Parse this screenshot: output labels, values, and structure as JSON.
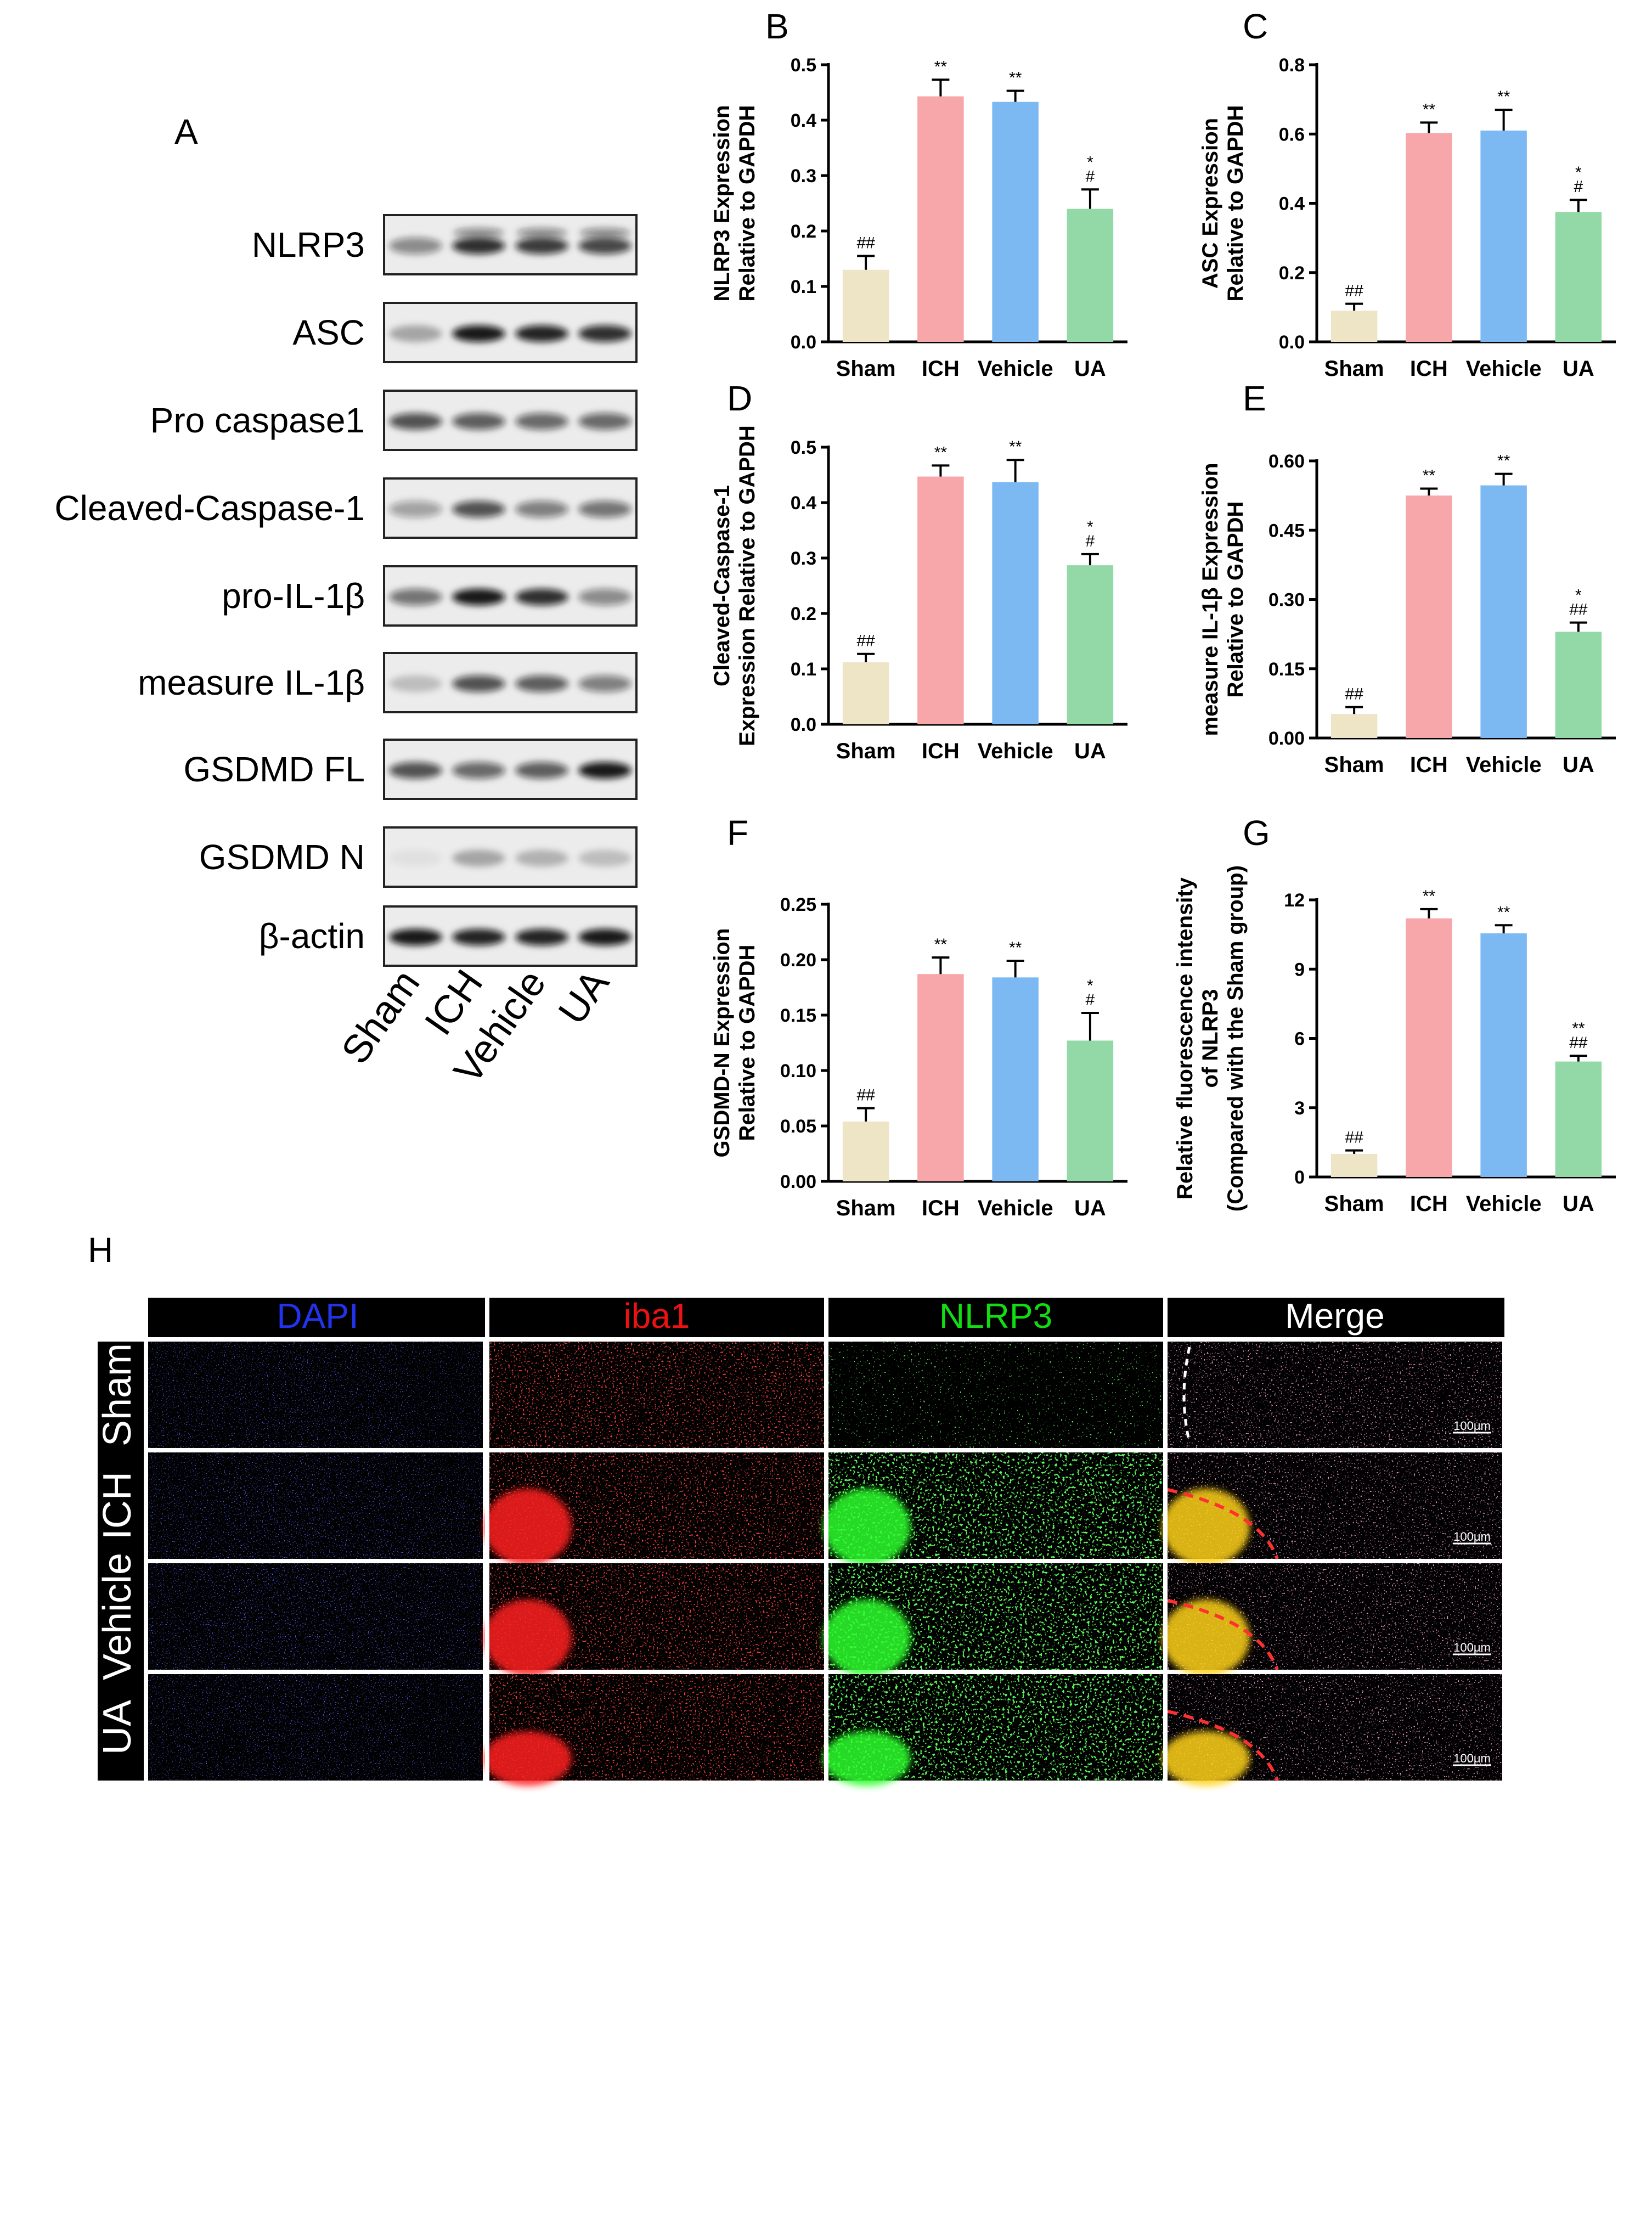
{
  "panel_labels": [
    "A",
    "B",
    "C",
    "D",
    "E",
    "F",
    "G",
    "H"
  ],
  "western_blot": {
    "bands": [
      "NLRP3",
      "ASC",
      "Pro caspase1",
      "Cleaved-Caspase-1",
      "pro-IL-1β",
      "measure IL-1β",
      "GSDMD FL",
      "GSDMD N",
      "β-actin"
    ],
    "lanes": [
      "Sham",
      "ICH",
      "Vehicle",
      "UA"
    ]
  },
  "chart_data": [
    {
      "panel": "B",
      "type": "bar",
      "categories": [
        "Sham",
        "ICH",
        "Vehicle",
        "UA"
      ],
      "values": [
        0.13,
        0.443,
        0.433,
        0.24
      ],
      "errors": [
        0.025,
        0.03,
        0.02,
        0.035
      ],
      "significance": [
        [
          "##"
        ],
        [
          "**"
        ],
        [
          "**"
        ],
        [
          "*",
          "#"
        ]
      ],
      "ylabel": [
        "NLRP3 Expression",
        "Relative to GAPDH"
      ],
      "ylim": [
        0,
        0.5
      ],
      "yticks": [
        0.0,
        0.1,
        0.2,
        0.3,
        0.4,
        0.5
      ],
      "tick_labels": [
        "0.0",
        "0.1",
        "0.2",
        "0.3",
        "0.4",
        "0.5"
      ],
      "colors": [
        "#EEE4C6",
        "#F7A6A9",
        "#7CB9F2",
        "#93D9A8"
      ]
    },
    {
      "panel": "C",
      "type": "bar",
      "categories": [
        "Sham",
        "ICH",
        "Vehicle",
        "UA"
      ],
      "values": [
        0.09,
        0.603,
        0.61,
        0.375
      ],
      "errors": [
        0.02,
        0.03,
        0.06,
        0.035
      ],
      "significance": [
        [
          "##"
        ],
        [
          "**"
        ],
        [
          "**"
        ],
        [
          "*",
          "#"
        ]
      ],
      "ylabel": [
        "ASC Expression",
        "Relative to GAPDH"
      ],
      "ylim": [
        0,
        0.8
      ],
      "yticks": [
        0.0,
        0.2,
        0.4,
        0.6,
        0.8
      ],
      "tick_labels": [
        "0.0",
        "0.2",
        "0.4",
        "0.6",
        "0.8"
      ],
      "colors": [
        "#EEE4C6",
        "#F7A6A9",
        "#7CB9F2",
        "#93D9A8"
      ]
    },
    {
      "panel": "D",
      "type": "bar",
      "categories": [
        "Sham",
        "ICH",
        "Vehicle",
        "UA"
      ],
      "values": [
        0.112,
        0.447,
        0.437,
        0.287
      ],
      "errors": [
        0.015,
        0.02,
        0.04,
        0.02
      ],
      "significance": [
        [
          "##"
        ],
        [
          "**"
        ],
        [
          "**"
        ],
        [
          "*",
          "#"
        ]
      ],
      "ylabel": [
        "Cleaved-Caspase-1",
        "Expression Relative to GAPDH"
      ],
      "ylim": [
        0,
        0.5
      ],
      "yticks": [
        0.0,
        0.1,
        0.2,
        0.3,
        0.4,
        0.5
      ],
      "tick_labels": [
        "0.0",
        "0.1",
        "0.2",
        "0.3",
        "0.4",
        "0.5"
      ],
      "colors": [
        "#EEE4C6",
        "#F7A6A9",
        "#7CB9F2",
        "#93D9A8"
      ]
    },
    {
      "panel": "E",
      "type": "bar",
      "categories": [
        "Sham",
        "ICH",
        "Vehicle",
        "UA"
      ],
      "values": [
        0.052,
        0.525,
        0.547,
        0.23
      ],
      "errors": [
        0.015,
        0.015,
        0.025,
        0.02
      ],
      "significance": [
        [
          "##"
        ],
        [
          "**"
        ],
        [
          "**"
        ],
        [
          "*",
          "##"
        ]
      ],
      "ylabel": [
        "measure IL-1β Expression",
        "Relative to GAPDH"
      ],
      "ylim": [
        0,
        0.6
      ],
      "yticks": [
        0.0,
        0.15,
        0.3,
        0.45,
        0.6
      ],
      "tick_labels": [
        "0.00",
        "0.15",
        "0.30",
        "0.45",
        "0.60"
      ],
      "colors": [
        "#EEE4C6",
        "#F7A6A9",
        "#7CB9F2",
        "#93D9A8"
      ]
    },
    {
      "panel": "F",
      "type": "bar",
      "categories": [
        "Sham",
        "ICH",
        "Vehicle",
        "UA"
      ],
      "values": [
        0.054,
        0.187,
        0.184,
        0.127
      ],
      "errors": [
        0.012,
        0.015,
        0.015,
        0.025
      ],
      "significance": [
        [
          "##"
        ],
        [
          "**"
        ],
        [
          "**"
        ],
        [
          "*",
          "#"
        ]
      ],
      "ylabel": [
        "GSDMD-N Expression",
        "Relative to GAPDH"
      ],
      "ylim": [
        0,
        0.25
      ],
      "yticks": [
        0.0,
        0.05,
        0.1,
        0.15,
        0.2,
        0.25
      ],
      "tick_labels": [
        "0.00",
        "0.05",
        "0.10",
        "0.15",
        "0.20",
        "0.25"
      ],
      "colors": [
        "#EEE4C6",
        "#F7A6A9",
        "#7CB9F2",
        "#93D9A8"
      ]
    },
    {
      "panel": "G",
      "type": "bar",
      "categories": [
        "Sham",
        "ICH",
        "Vehicle",
        "UA"
      ],
      "values": [
        1.0,
        11.2,
        10.55,
        5.0
      ],
      "errors": [
        0.15,
        0.4,
        0.35,
        0.25
      ],
      "significance": [
        [
          "##"
        ],
        [
          "**"
        ],
        [
          "**"
        ],
        [
          "**",
          "##"
        ]
      ],
      "ylabel": [
        "Relative fluorescence intensity",
        "of NLRP3",
        "(Compared with the Sham group)"
      ],
      "ylim": [
        0,
        12
      ],
      "yticks": [
        0,
        3,
        6,
        9,
        12
      ],
      "tick_labels": [
        "0",
        "3",
        "6",
        "9",
        "12"
      ],
      "colors": [
        "#EEE4C6",
        "#F7A6A9",
        "#7CB9F2",
        "#93D9A8"
      ]
    }
  ],
  "fluorescence_grid": {
    "columns": [
      {
        "label": "DAPI",
        "color": "#2233ee"
      },
      {
        "label": "iba1",
        "color": "#ee1111"
      },
      {
        "label": "NLRP3",
        "color": "#11dd11"
      },
      {
        "label": "Merge",
        "color": "#ffffff"
      }
    ],
    "rows": [
      "Sham",
      "ICH",
      "Vehicle",
      "UA"
    ],
    "scale_bar": "100μm"
  }
}
